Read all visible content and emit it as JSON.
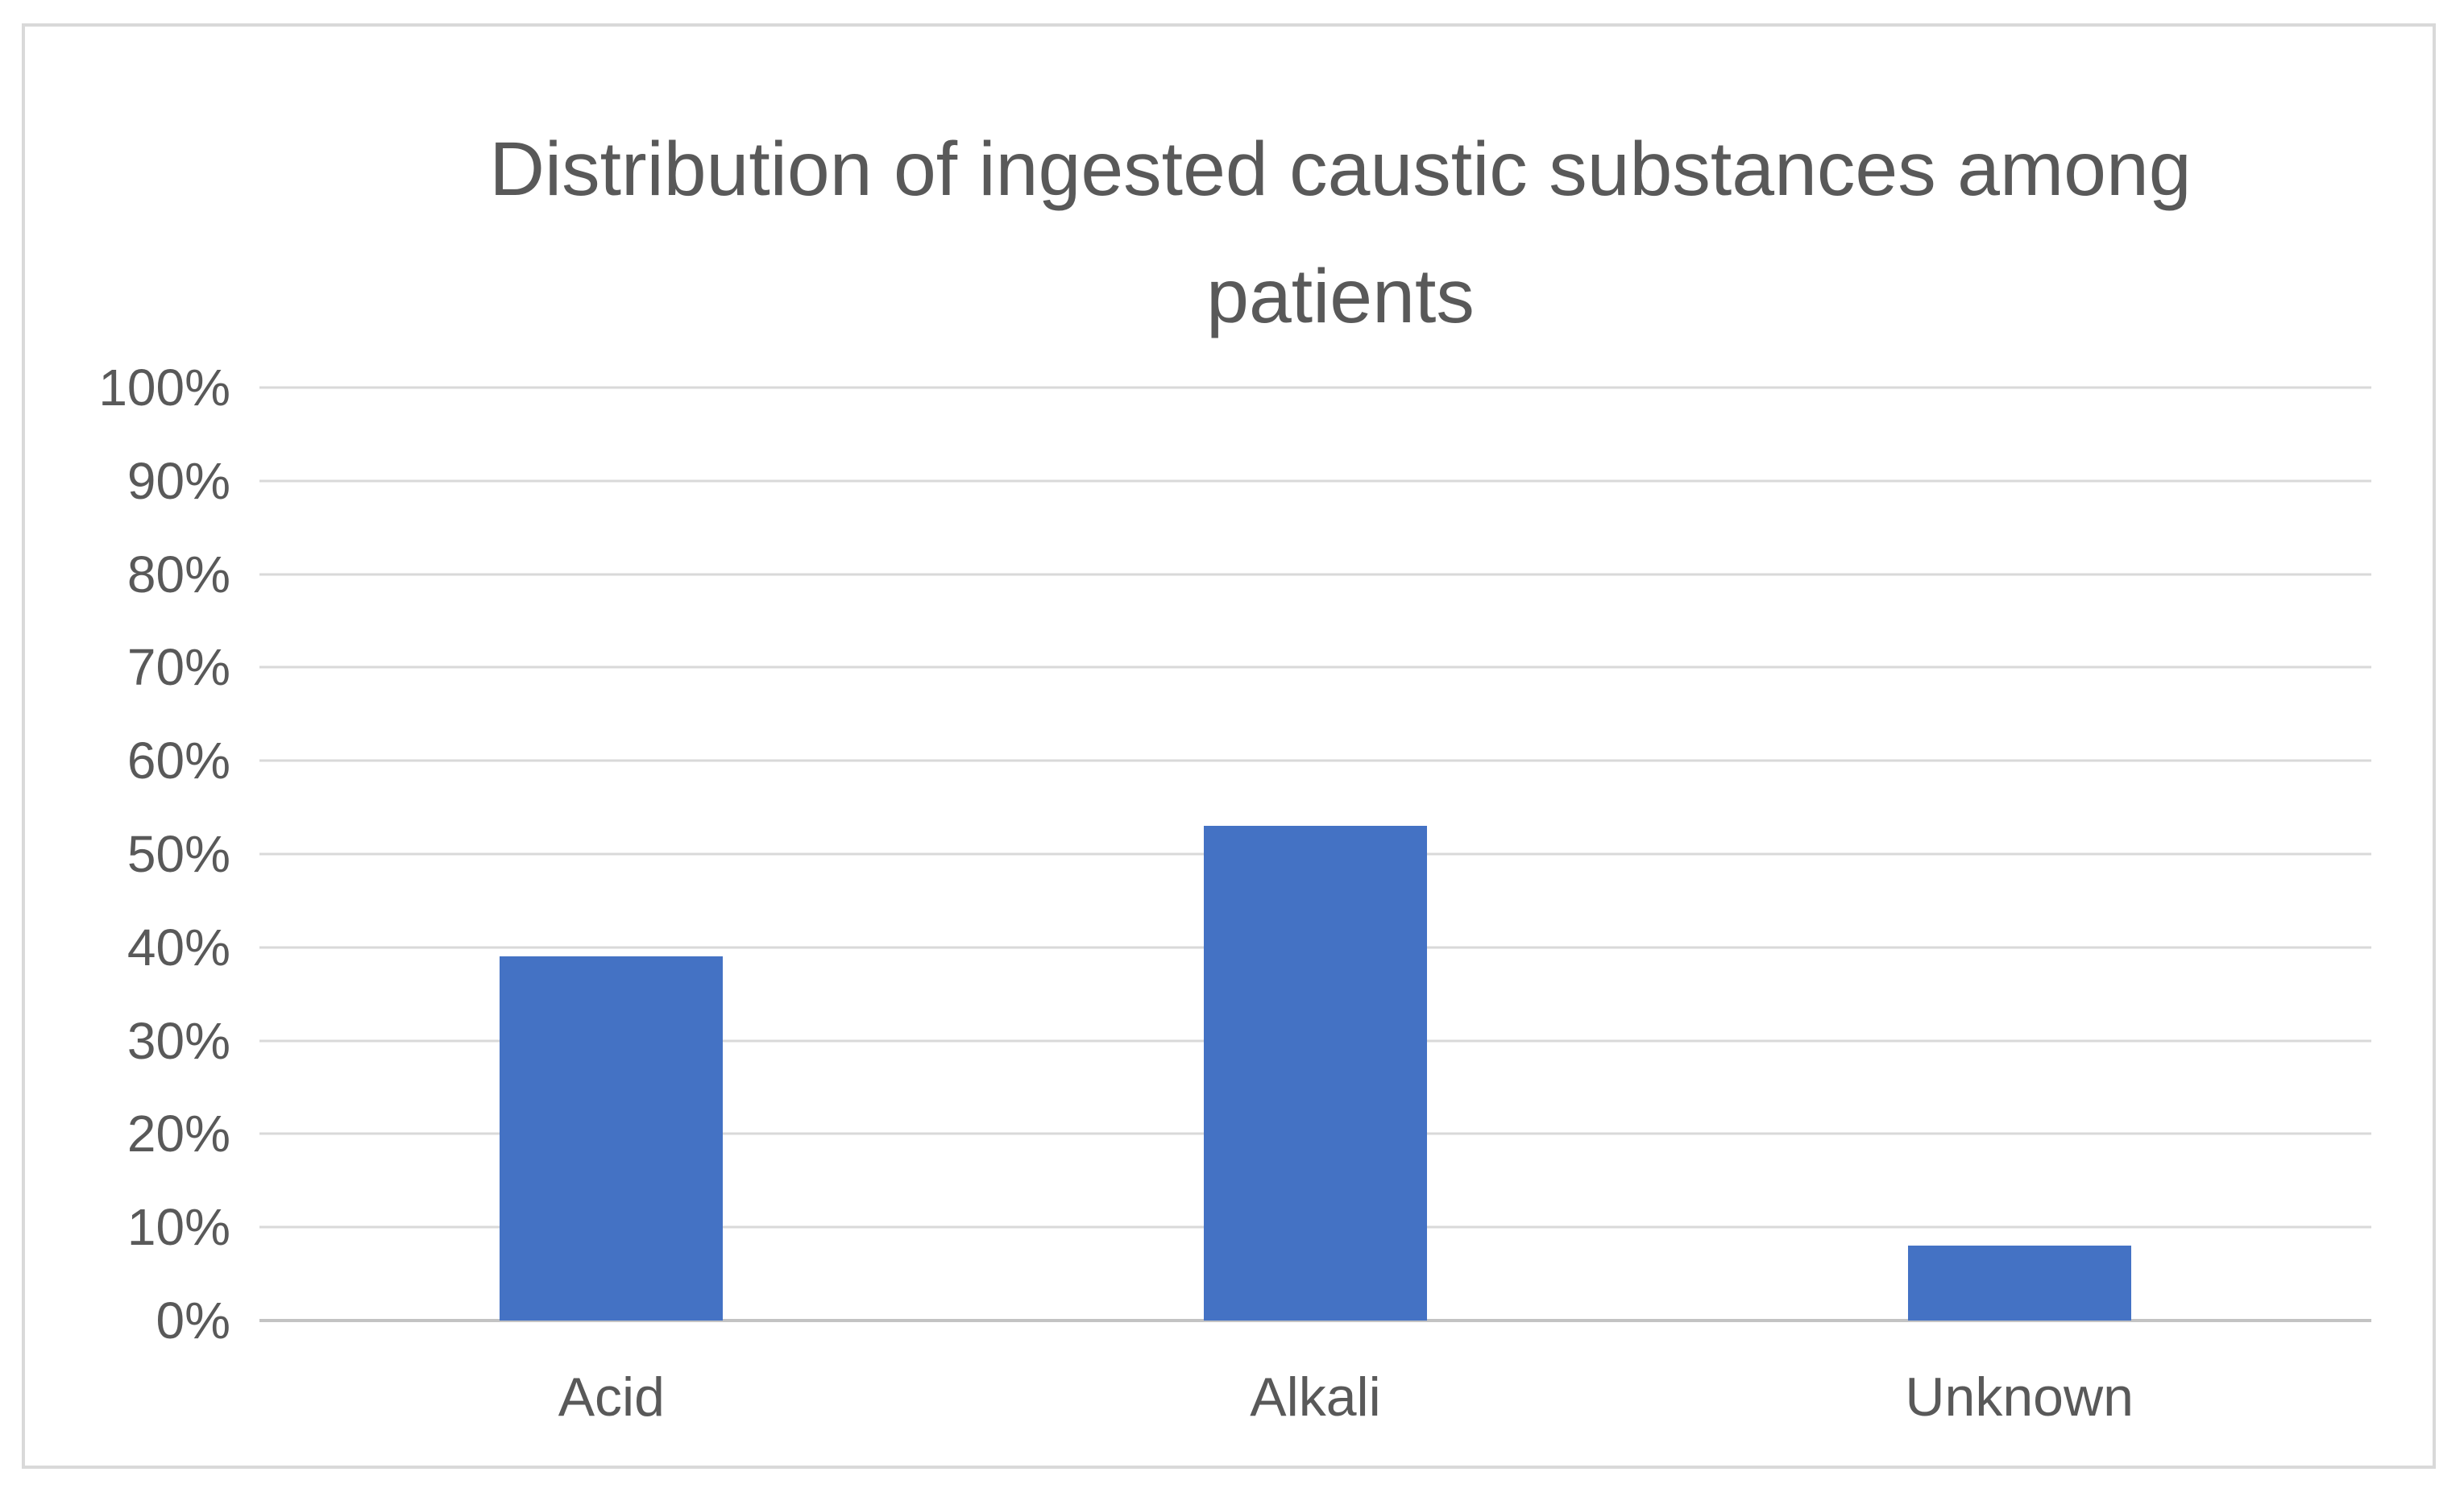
{
  "frame": {
    "background": "#ffffff",
    "border_color": "#d9d9d9"
  },
  "chart_data": {
    "type": "bar",
    "title": "Distribution of ingested caustic substances among patients",
    "categories": [
      "Acid",
      "Alkali",
      "Unknown"
    ],
    "values": [
      39,
      53,
      8
    ],
    "value_unit": "%",
    "xlabel": "",
    "ylabel": "",
    "ylim": [
      0,
      100
    ],
    "ytick_step": 10,
    "ytick_labels": [
      "100%",
      "90%",
      "80%",
      "70%",
      "60%",
      "50%",
      "40%",
      "30%",
      "20%",
      "10%",
      "0%"
    ],
    "grid": "horizontal",
    "legend": "none",
    "colors": {
      "bar": "#4472c4",
      "gridline": "#d9d9d9",
      "axis_line": "#c3c3c3",
      "text": "#595959"
    }
  }
}
